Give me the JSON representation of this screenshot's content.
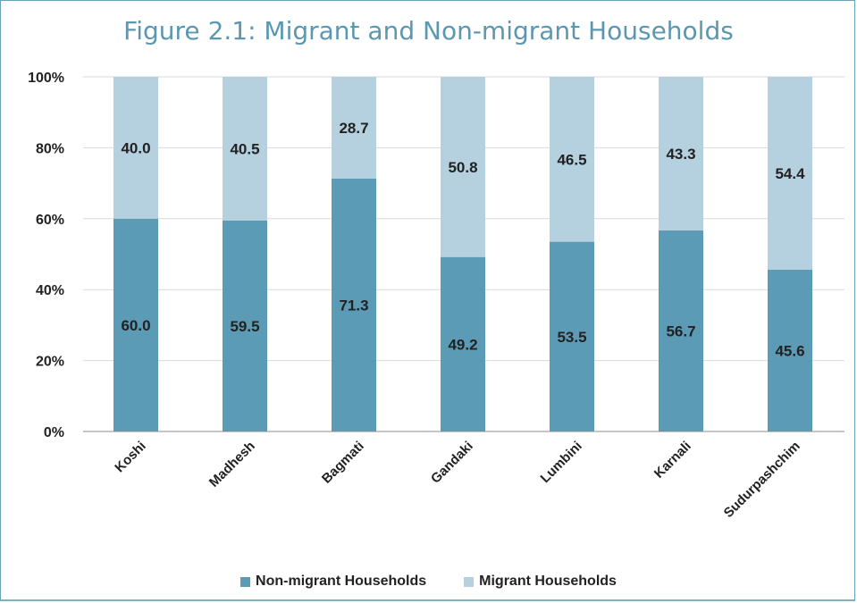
{
  "title": "Figure 2.1: Migrant and Non-migrant Households",
  "colors": {
    "non_migrant": "#5b9bb5",
    "migrant": "#b5d0de",
    "grid": "#d9d9d9",
    "axis": "#8c8c8c"
  },
  "chart_data": {
    "type": "bar",
    "stacked": true,
    "percent": true,
    "categories": [
      "Koshi",
      "Madhesh",
      "Bagmati",
      "Gandaki",
      "Lumbini",
      "Karnali",
      "Sudurpashchim"
    ],
    "series": [
      {
        "name": "Non-migrant Households",
        "values": [
          60.0,
          59.5,
          71.3,
          49.2,
          53.5,
          56.7,
          45.6
        ],
        "labels": [
          "60.0",
          "59.5",
          "71.3",
          "49.2",
          "53.5",
          "56.7",
          "45.6"
        ]
      },
      {
        "name": "Migrant Households",
        "values": [
          40.0,
          40.5,
          28.7,
          50.8,
          46.5,
          43.3,
          54.4
        ],
        "labels": [
          "40.0",
          "40.5",
          "28.7",
          "50.8",
          "46.5",
          "43.3",
          "54.4"
        ]
      }
    ],
    "ylim": [
      0,
      100
    ],
    "yticks": [
      "0%",
      "20%",
      "40%",
      "60%",
      "80%",
      "100%"
    ],
    "grid": true,
    "legend": "bottom"
  }
}
